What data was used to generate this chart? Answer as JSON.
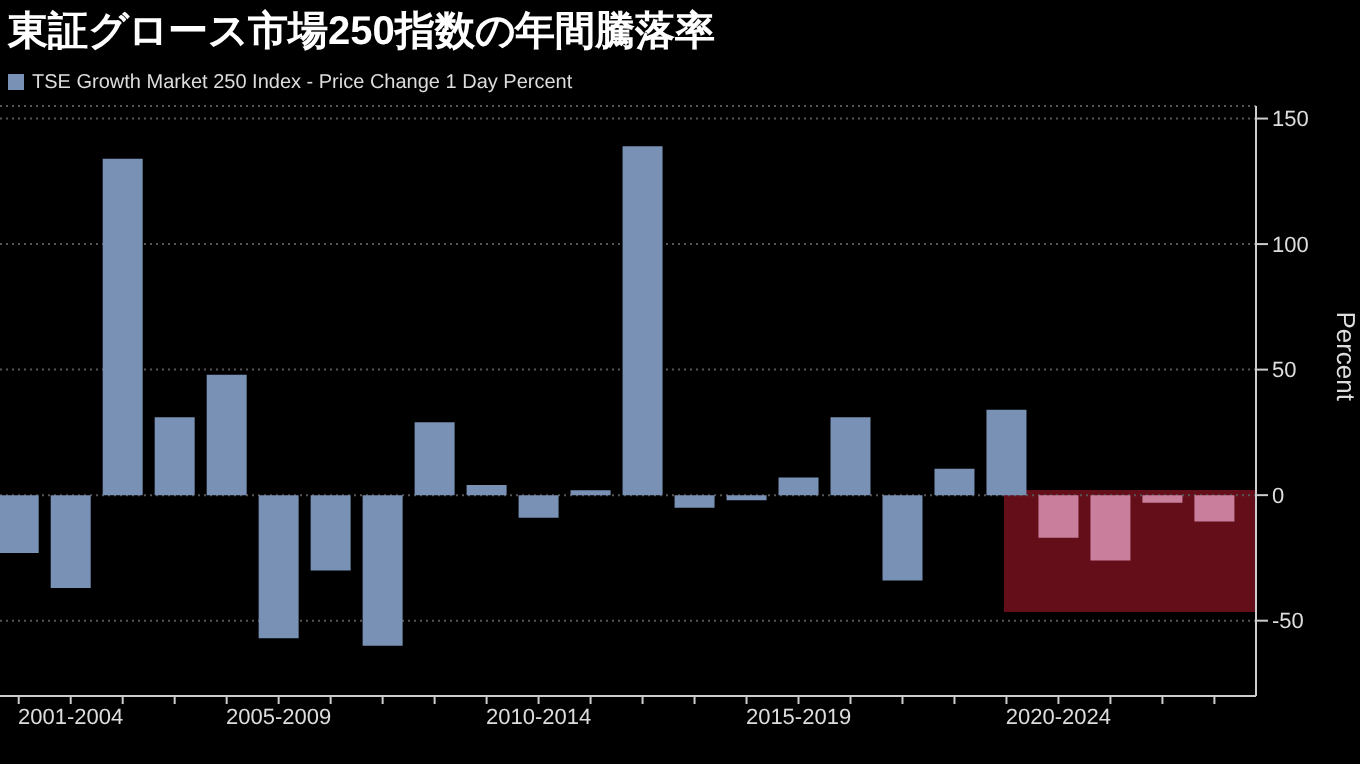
{
  "chart_data": {
    "type": "bar",
    "title": "東証グロース市場250指数の年間騰落率",
    "ylabel": "Percent",
    "categories": [
      null,
      "2001-2004",
      null,
      null,
      null,
      "2005-2009",
      null,
      null,
      null,
      null,
      "2010-2014",
      null,
      null,
      null,
      null,
      "2015-2019",
      null,
      null,
      null,
      null,
      "2020-2024",
      null,
      null,
      null
    ],
    "series": [
      {
        "name": "TSE Growth Market 250 Index - Price Change 1 Day Percent",
        "color": "#7891b4",
        "values": [
          -23,
          -37,
          134,
          31,
          48,
          -57,
          -30,
          -60,
          29,
          4,
          -9,
          2,
          139,
          -5,
          -2,
          7,
          31,
          -34,
          10.5,
          34,
          -17,
          -26,
          -3,
          -10.5
        ],
        "colors": [
          "#7891b4",
          "#7891b4",
          "#7891b4",
          "#7891b4",
          "#7891b4",
          "#7891b4",
          "#7891b4",
          "#7891b4",
          "#7891b4",
          "#7891b4",
          "#7891b4",
          "#7891b4",
          "#7891b4",
          "#7891b4",
          "#7891b4",
          "#7891b4",
          "#7891b4",
          "#7891b4",
          "#7891b4",
          "#7891b4",
          "#c97f9c",
          "#c97f9c",
          "#c97f9c",
          "#c97f9c"
        ]
      }
    ],
    "ylim": [
      -80,
      155
    ],
    "yticks": [
      -50,
      0,
      50,
      100,
      150
    ],
    "grid": "y",
    "legend": "top left"
  }
}
